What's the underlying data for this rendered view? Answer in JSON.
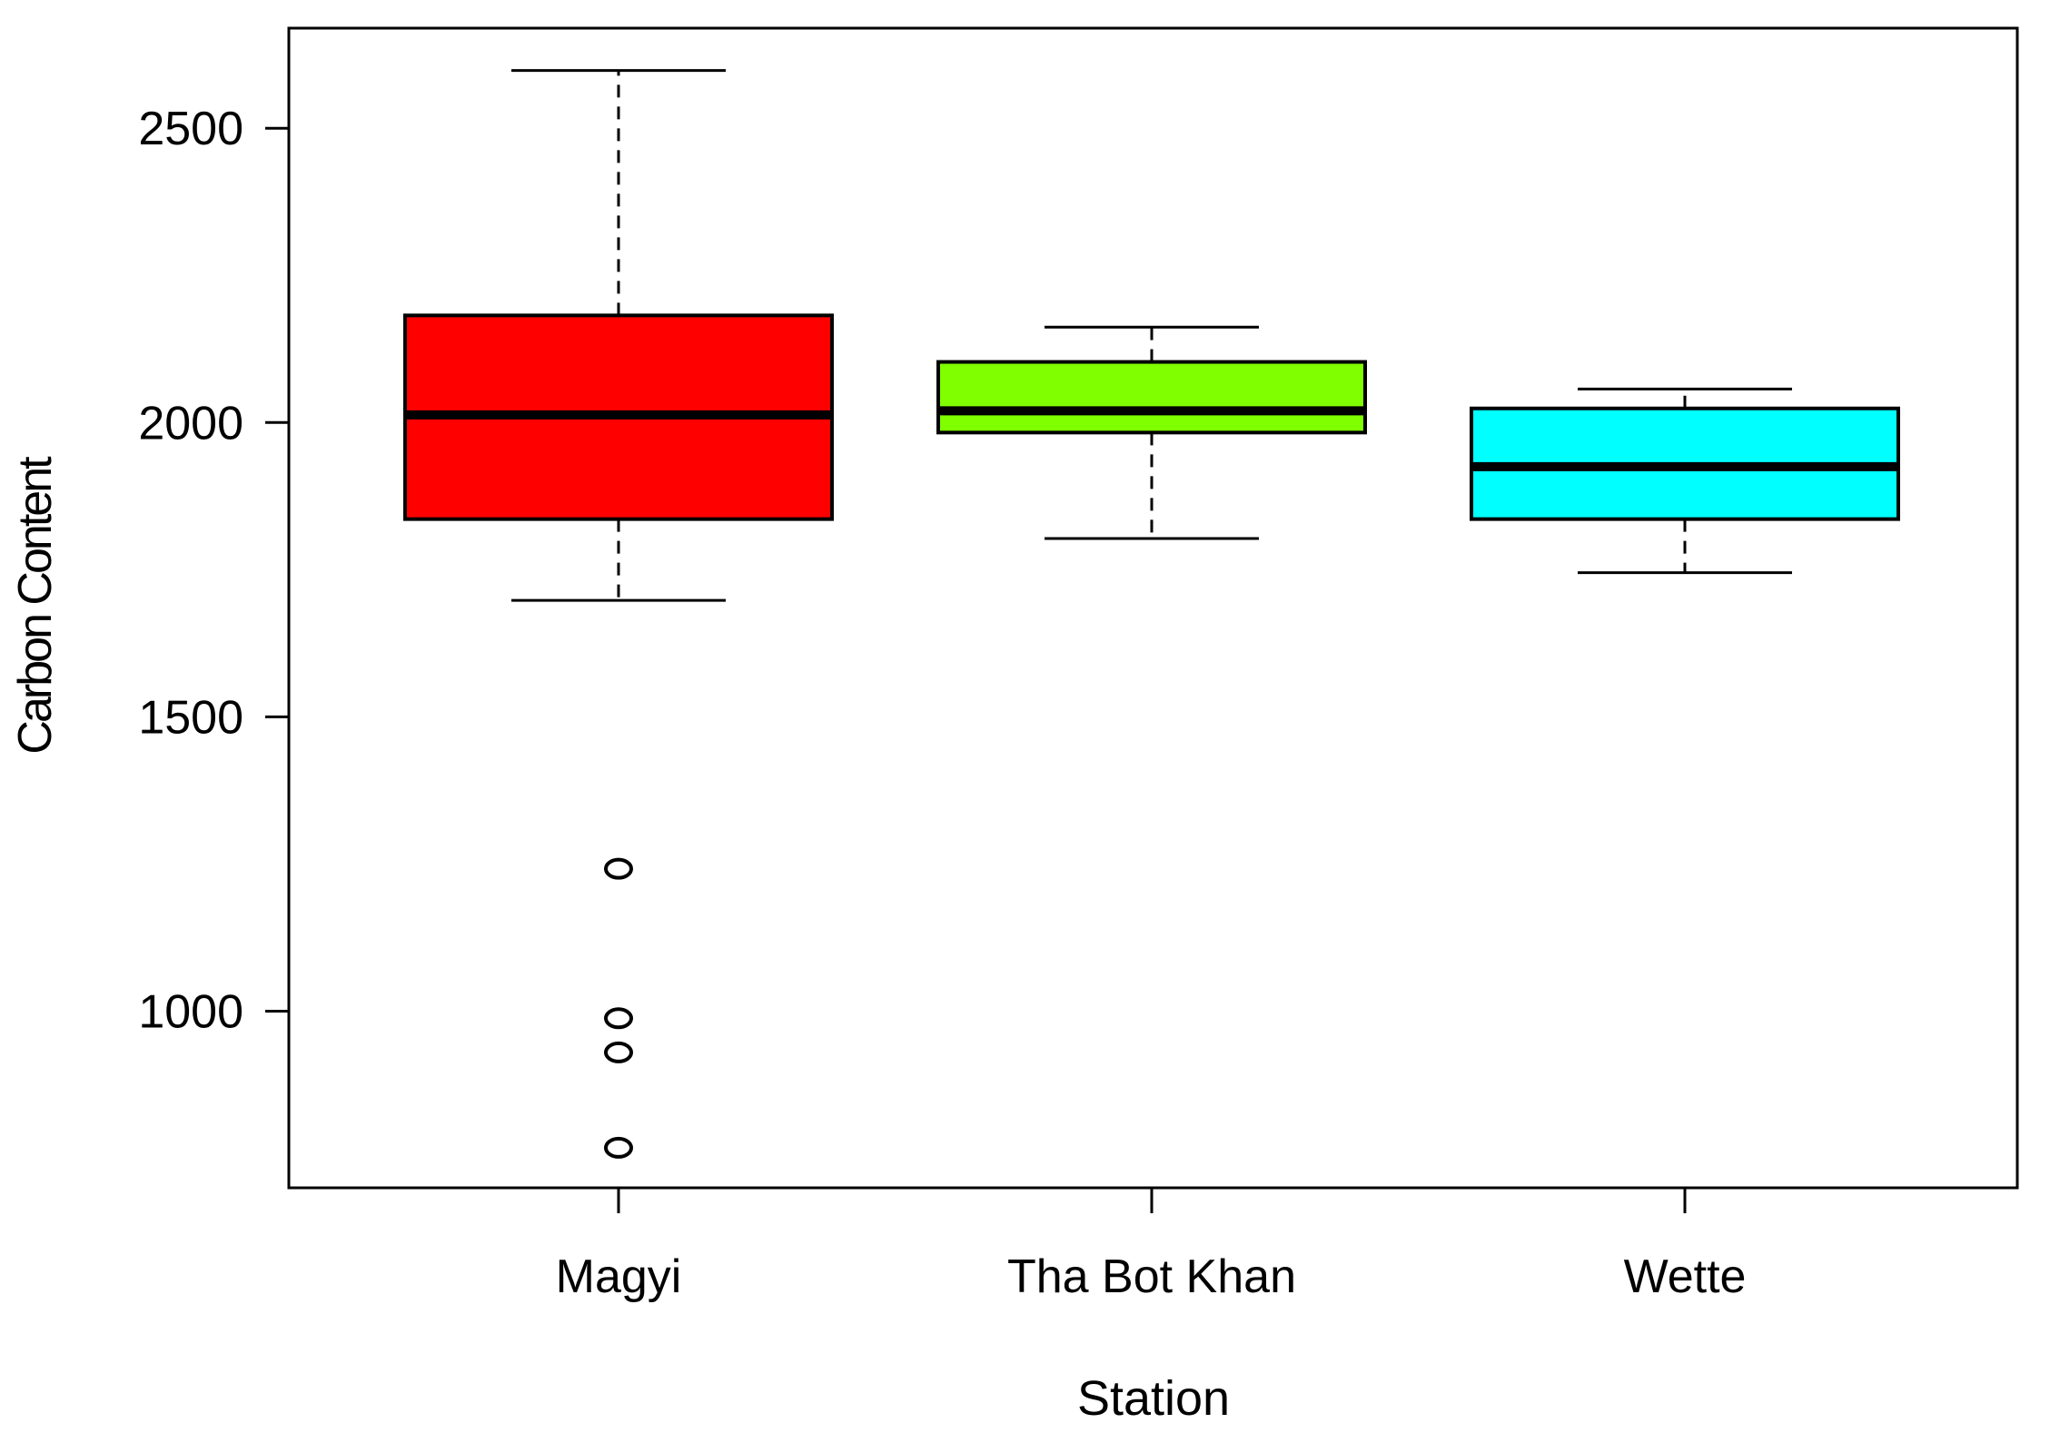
{
  "chart_data": {
    "type": "boxplot",
    "xlabel": "Station",
    "ylabel": "Carbon Content",
    "ylim": [
      700,
      2670
    ],
    "yticks": [
      1000,
      1500,
      2000,
      2500
    ],
    "ytick_labels": [
      "1000",
      "1500",
      "2000",
      "2500"
    ],
    "categories": [
      "Magyi",
      "Tha Bot Khan",
      "Wette"
    ],
    "series": [
      {
        "category": "Magyi",
        "color": "#ff0000",
        "whisker_low": 1698,
        "q1": 1836,
        "median": 2013,
        "q3": 2182,
        "whisker_high": 2598,
        "outliers": [
          1242,
          988,
          930,
          768
        ]
      },
      {
        "category": "Tha Bot Khan",
        "color": "#7fff00",
        "whisker_low": 1803,
        "q1": 1983,
        "median": 2020,
        "q3": 2103,
        "whisker_high": 2162
      },
      {
        "category": "Wette",
        "color": "#00ffff",
        "whisker_low": 1745,
        "q1": 1836,
        "median": 1925,
        "q3": 2024,
        "whisker_high": 2057
      }
    ],
    "grid": false,
    "legend": "none"
  }
}
